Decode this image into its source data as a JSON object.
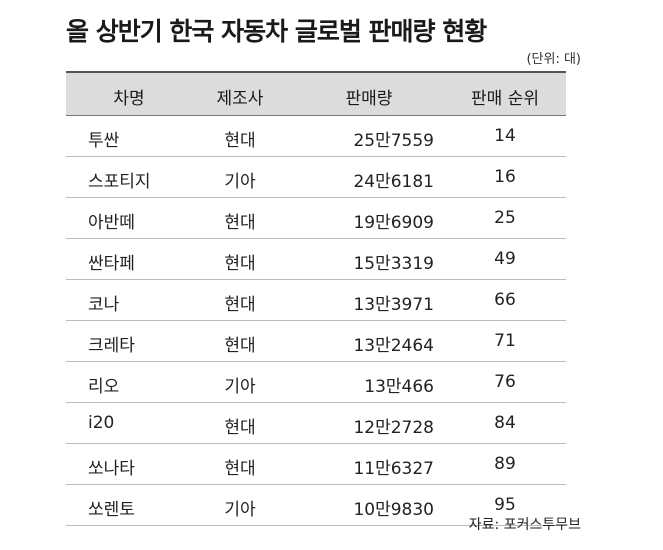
{
  "title": "올 상반기 한국 자동차 글로벌 판매량 현황",
  "unit": "(단위: 대)",
  "headers": [
    "차명",
    "제조사",
    "판매량",
    "판매 순위"
  ],
  "rows": [
    [
      "투싼",
      "현대",
      "25만7559",
      "14"
    ],
    [
      "스포티지",
      "기아",
      "24만6181",
      "16"
    ],
    [
      "아반떼",
      "현대",
      "19만6909",
      "25"
    ],
    [
      "싼타페",
      "현대",
      "15만3319",
      "49"
    ],
    [
      "코나",
      "현대",
      "13만3971",
      "66"
    ],
    [
      "크레타",
      "현대",
      "13만2464",
      "71"
    ],
    [
      "리오",
      "기아",
      "13만466",
      "76"
    ],
    [
      "i20",
      "현대",
      "12만2728",
      "84"
    ],
    [
      "쏘나타",
      "현대",
      "11만6327",
      "89"
    ],
    [
      "쏘렌토",
      "기아",
      "10만9830",
      "95"
    ]
  ],
  "source": "자료: 포커스투무브"
}
